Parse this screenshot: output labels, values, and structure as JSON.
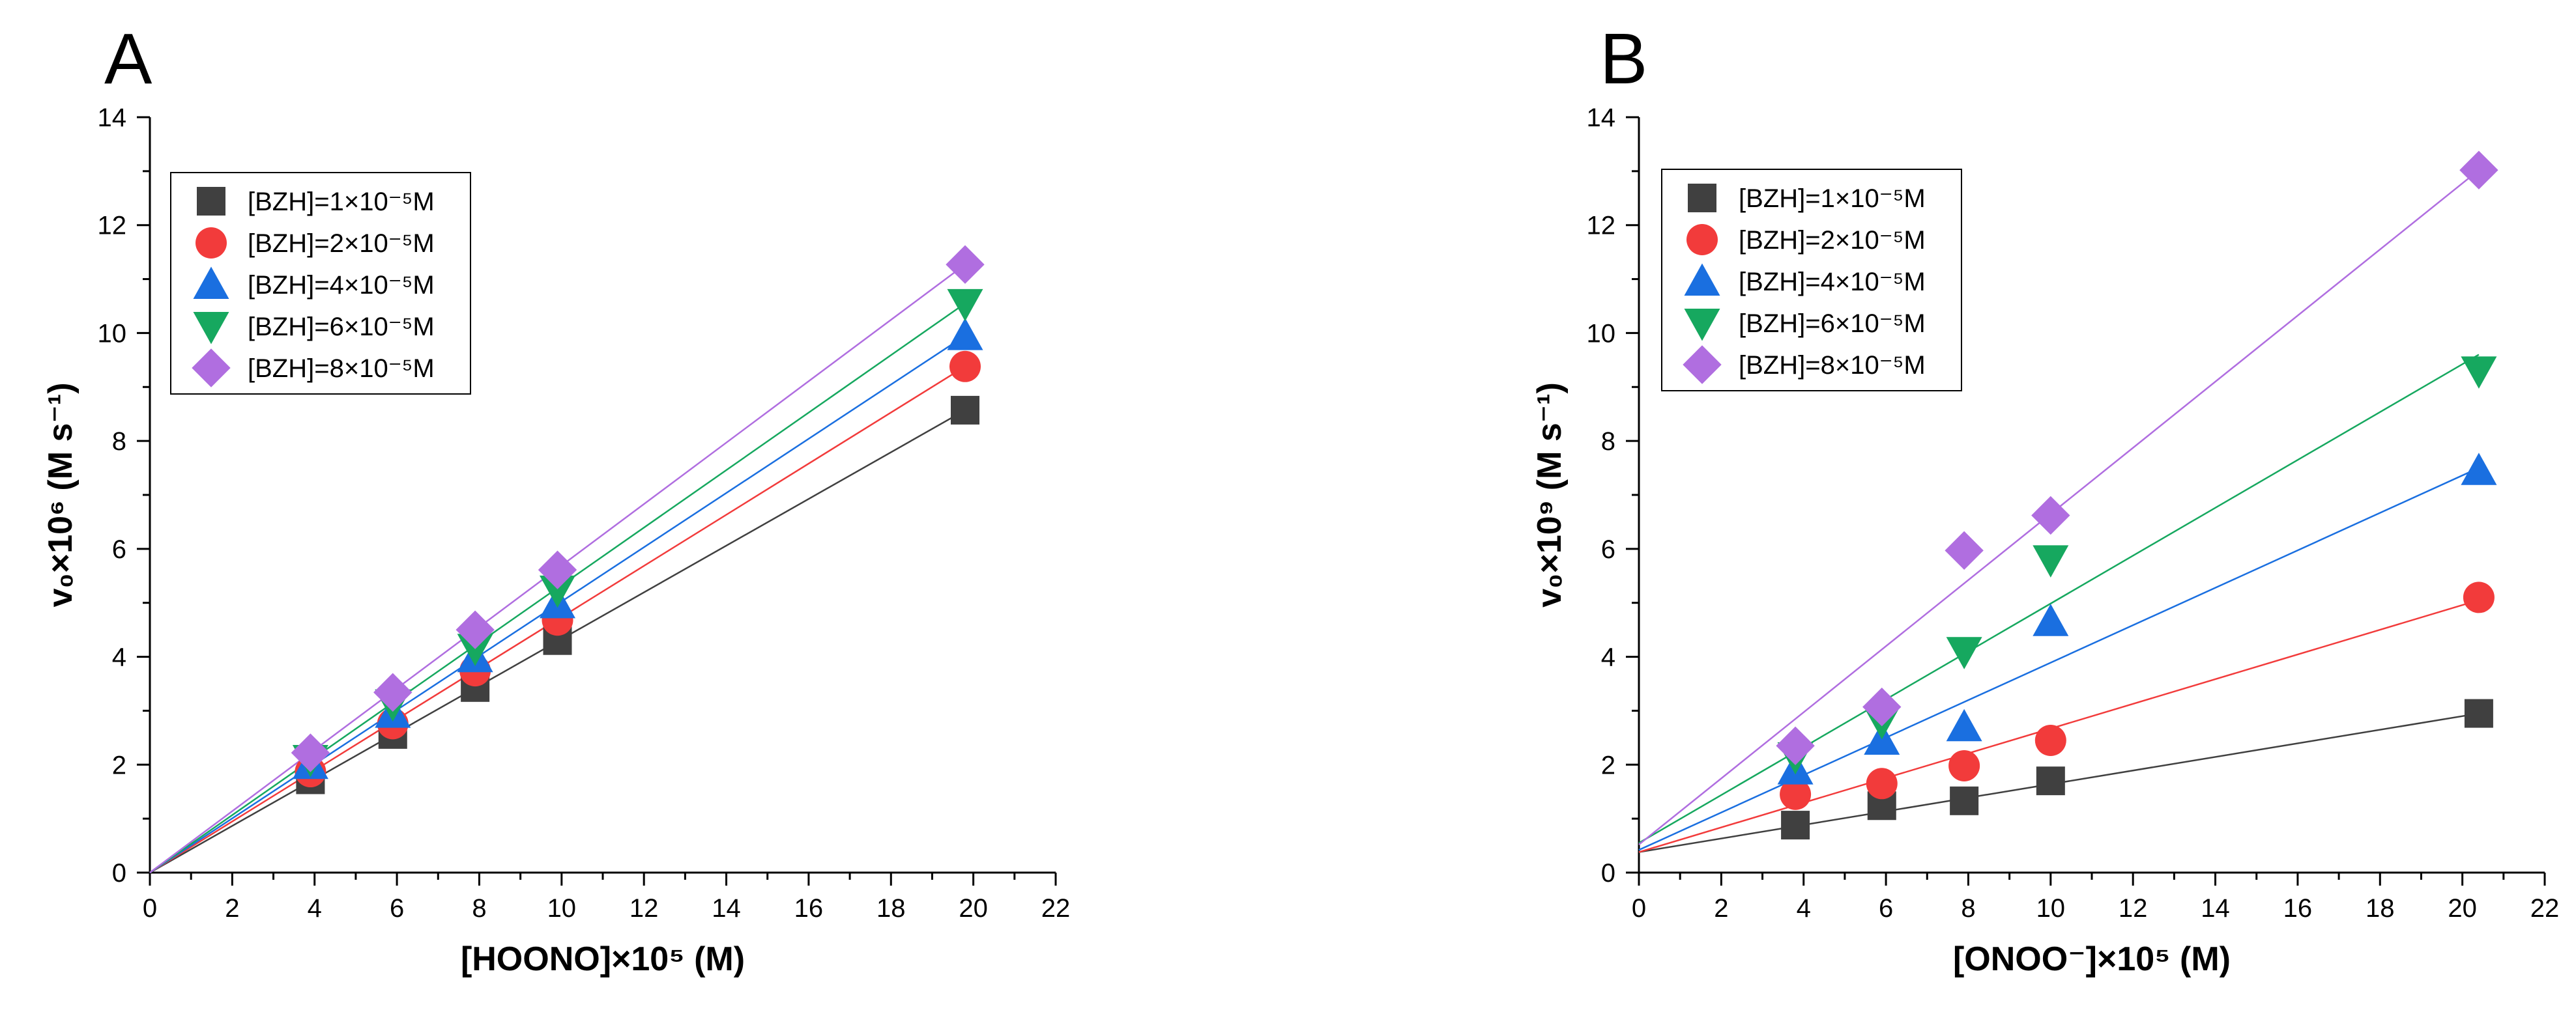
{
  "chart_data": [
    {
      "panel": "A",
      "type": "scatter",
      "xlabel": "[HOONO]×10⁵ (M)",
      "ylabel": "v₀×10⁶ (M s⁻¹)",
      "xlim": [
        0,
        22
      ],
      "ylim": [
        0,
        14
      ],
      "xticks": [
        0,
        2,
        4,
        6,
        8,
        10,
        12,
        14,
        16,
        18,
        20,
        22
      ],
      "yticks": [
        0,
        2,
        4,
        6,
        8,
        10,
        12,
        14
      ],
      "legend_position": "top-left",
      "series": [
        {
          "name": "[BZH]=1×10⁻⁵M",
          "marker": "square",
          "color": "#404040",
          "points": [
            [
              3.9,
              1.72
            ],
            [
              5.9,
              2.56
            ],
            [
              7.9,
              3.43
            ],
            [
              9.9,
              4.3
            ],
            [
              19.8,
              8.57
            ]
          ],
          "fit": [
            [
              0,
              0
            ],
            [
              19.8,
              8.57
            ]
          ]
        },
        {
          "name": "[BZH]=2×10⁻⁵M",
          "marker": "circle",
          "color": "#f23b3b",
          "points": [
            [
              3.9,
              1.87
            ],
            [
              5.9,
              2.76
            ],
            [
              7.9,
              3.74
            ],
            [
              9.9,
              4.68
            ],
            [
              19.8,
              9.38
            ]
          ],
          "fit": [
            [
              0,
              0
            ],
            [
              19.8,
              9.38
            ]
          ]
        },
        {
          "name": "[BZH]=4×10⁻⁵M",
          "marker": "triangle-up",
          "color": "#1a6fe0",
          "points": [
            [
              3.9,
              2.0
            ],
            [
              5.9,
              2.95
            ],
            [
              7.9,
              3.98
            ],
            [
              9.9,
              4.98
            ],
            [
              19.8,
              9.95
            ]
          ],
          "fit": [
            [
              0,
              0
            ],
            [
              19.8,
              9.95
            ]
          ]
        },
        {
          "name": "[BZH]=6×10⁻⁵M",
          "marker": "triangle-down",
          "color": "#16a85f",
          "points": [
            [
              3.9,
              2.1
            ],
            [
              5.9,
              3.13
            ],
            [
              7.9,
              4.16
            ],
            [
              9.9,
              5.24
            ],
            [
              19.8,
              10.55
            ]
          ],
          "fit": [
            [
              0,
              0
            ],
            [
              19.8,
              10.55
            ]
          ]
        },
        {
          "name": "[BZH]=8×10⁻⁵M",
          "marker": "diamond",
          "color": "#b06ee0",
          "points": [
            [
              3.9,
              2.22
            ],
            [
              5.9,
              3.34
            ],
            [
              7.9,
              4.5
            ],
            [
              9.9,
              5.61
            ],
            [
              19.8,
              11.27
            ]
          ],
          "fit": [
            [
              0,
              0
            ],
            [
              19.8,
              11.27
            ]
          ]
        }
      ]
    },
    {
      "panel": "B",
      "type": "scatter",
      "xlabel": "[ONOO⁻]×10⁵ (M)",
      "ylabel": "v₀×10⁹ (M s⁻¹)",
      "xlim": [
        0,
        22
      ],
      "ylim": [
        0,
        14
      ],
      "xticks": [
        0,
        2,
        4,
        6,
        8,
        10,
        12,
        14,
        16,
        18,
        20,
        22
      ],
      "yticks": [
        0,
        2,
        4,
        6,
        8,
        10,
        12,
        14
      ],
      "legend_position": "top-left",
      "series": [
        {
          "name": "[BZH]=1×10⁻⁵M",
          "marker": "square",
          "color": "#404040",
          "points": [
            [
              3.8,
              0.88
            ],
            [
              5.9,
              1.24
            ],
            [
              7.9,
              1.33
            ],
            [
              10.0,
              1.7
            ],
            [
              20.4,
              2.95
            ]
          ],
          "fit": [
            [
              0,
              0.38
            ],
            [
              20.4,
              2.95
            ]
          ]
        },
        {
          "name": "[BZH]=2×10⁻⁵M",
          "marker": "circle",
          "color": "#f23b3b",
          "points": [
            [
              3.8,
              1.45
            ],
            [
              5.9,
              1.65
            ],
            [
              7.9,
              1.98
            ],
            [
              10.0,
              2.45
            ],
            [
              20.4,
              5.1
            ]
          ],
          "fit": [
            [
              0,
              0.38
            ],
            [
              20.4,
              5.05
            ]
          ]
        },
        {
          "name": "[BZH]=4×10⁻⁵M",
          "marker": "triangle-up",
          "color": "#1a6fe0",
          "points": [
            [
              3.8,
              1.9
            ],
            [
              5.9,
              2.45
            ],
            [
              7.9,
              2.7
            ],
            [
              10.0,
              4.65
            ],
            [
              20.4,
              7.45
            ]
          ],
          "fit": [
            [
              0,
              0.42
            ],
            [
              20.4,
              7.5
            ]
          ]
        },
        {
          "name": "[BZH]=6×10⁻⁵M",
          "marker": "triangle-down",
          "color": "#16a85f",
          "points": [
            [
              3.8,
              2.15
            ],
            [
              5.9,
              2.8
            ],
            [
              7.9,
              4.1
            ],
            [
              10.0,
              5.8
            ],
            [
              20.4,
              9.3
            ]
          ],
          "fit": [
            [
              0,
              0.55
            ],
            [
              20.4,
              9.6
            ]
          ]
        },
        {
          "name": "[BZH]=8×10⁻⁵M",
          "marker": "diamond",
          "color": "#b06ee0",
          "points": [
            [
              3.8,
              2.35
            ],
            [
              5.9,
              3.07
            ],
            [
              7.9,
              5.97
            ],
            [
              10.0,
              6.62
            ],
            [
              20.4,
              13.02
            ]
          ],
          "fit": [
            [
              0,
              0.52
            ],
            [
              20.4,
              13.02
            ]
          ]
        }
      ]
    }
  ]
}
